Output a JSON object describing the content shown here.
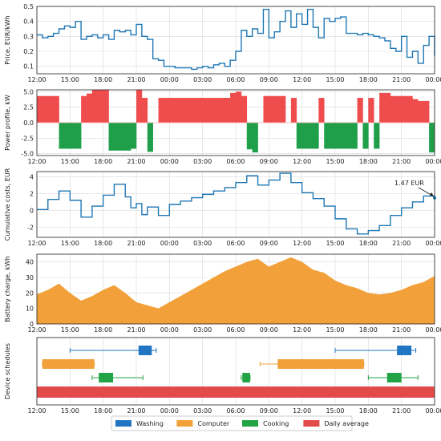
{
  "x_tick_labels": [
    "12:00",
    "15:00",
    "18:00",
    "21:00",
    "00:00",
    "03:00",
    "06:00",
    "09:00",
    "12:00",
    "15:00",
    "18:00",
    "21:00",
    "00:00"
  ],
  "colors": {
    "line": "#1f77b4",
    "pos": "#ef4d4d",
    "neg": "#1f9f4a",
    "battery": "#f2a03a",
    "washing": "#2176c4",
    "computer": "#f2a03a",
    "cooking": "#22a345",
    "daily": "#e34a4a",
    "grid": "#d9d9d9"
  },
  "chart_data": [
    {
      "type": "line",
      "ylabel": "Price, EUR/kWh",
      "ylim": [
        0.05,
        0.5
      ],
      "yticks": [
        0.1,
        0.2,
        0.3,
        0.4,
        0.5
      ],
      "ytick_labels": [
        "0.1",
        "0.2",
        "0.3",
        "0.4",
        "0.5"
      ],
      "x_hours": [
        12,
        12.5,
        13,
        13.5,
        14,
        14.5,
        15,
        15.5,
        16,
        16.5,
        17,
        17.5,
        18,
        18.5,
        19,
        19.5,
        20,
        20.5,
        21,
        21.5,
        22,
        22.5,
        23,
        23.5,
        24,
        24.5,
        25,
        25.5,
        26,
        26.5,
        27,
        27.5,
        28,
        28.5,
        29,
        29.5,
        30,
        30.5,
        31,
        31.5,
        32,
        32.5,
        33,
        33.5,
        34,
        34.5,
        35,
        35.5,
        36,
        36.5,
        37,
        37.5,
        38,
        38.5,
        39,
        39.5,
        40,
        40.5,
        41,
        41.5,
        42,
        42.5,
        43,
        43.5,
        44,
        44.5,
        45,
        45.5,
        46,
        46.5,
        47,
        47.5,
        48
      ],
      "values": [
        0.31,
        0.29,
        0.3,
        0.32,
        0.35,
        0.37,
        0.36,
        0.4,
        0.28,
        0.3,
        0.31,
        0.29,
        0.31,
        0.28,
        0.34,
        0.33,
        0.34,
        0.31,
        0.38,
        0.3,
        0.28,
        0.15,
        0.14,
        0.1,
        0.1,
        0.09,
        0.09,
        0.09,
        0.08,
        0.09,
        0.1,
        0.09,
        0.11,
        0.12,
        0.1,
        0.14,
        0.2,
        0.34,
        0.3,
        0.35,
        0.32,
        0.48,
        0.29,
        0.33,
        0.4,
        0.47,
        0.36,
        0.45,
        0.38,
        0.48,
        0.36,
        0.29,
        0.42,
        0.4,
        0.42,
        0.43,
        0.32,
        0.32,
        0.31,
        0.32,
        0.31,
        0.3,
        0.29,
        0.27,
        0.22,
        0.2,
        0.3,
        0.16,
        0.2,
        0.12,
        0.24,
        0.3,
        0.17
      ]
    },
    {
      "type": "bar",
      "ylabel": "Power profile, kW",
      "ylim": [
        -5.3,
        5.3
      ],
      "yticks": [
        -5.0,
        -2.5,
        0.0,
        2.5,
        5.0
      ],
      "ytick_labels": [
        "-5.0",
        "-2.5",
        "0.0",
        "2.5",
        "5.0"
      ],
      "x_hours": [
        12,
        12.5,
        13,
        13.5,
        14,
        14.5,
        15,
        15.5,
        16,
        16.5,
        17,
        17.5,
        18,
        18.5,
        19,
        19.5,
        20,
        20.5,
        21,
        21.5,
        22,
        22.5,
        23,
        23.5,
        24,
        24.5,
        25,
        25.5,
        26,
        26.5,
        27,
        27.5,
        28,
        28.5,
        29,
        29.5,
        30,
        30.5,
        31,
        31.5,
        32,
        32.5,
        33,
        33.5,
        34,
        34.5,
        35,
        35.5,
        36,
        36.5,
        37,
        37.5,
        38,
        38.5,
        39,
        39.5,
        40,
        40.5,
        41,
        41.5,
        42,
        42.5,
        43,
        43.5,
        44,
        44.5,
        45,
        45.5,
        46,
        46.5,
        47,
        47.5
      ],
      "values": [
        4.3,
        4.3,
        4.3,
        4.3,
        -4.2,
        -4.2,
        -4.2,
        -4.2,
        4.3,
        4.7,
        5.3,
        5.3,
        5.3,
        -4.5,
        -4.5,
        -4.5,
        -4.5,
        -4.2,
        5.3,
        4.0,
        -4.7,
        0,
        4.0,
        4.0,
        4.0,
        4.0,
        4.0,
        4.0,
        4.0,
        4.0,
        4.0,
        4.0,
        4.0,
        4.0,
        4.0,
        4.8,
        5.0,
        4.3,
        -4.3,
        -4.8,
        0,
        4.3,
        4.3,
        4.3,
        4.3,
        0,
        4.0,
        -4.2,
        -4.2,
        -4.2,
        -4.2,
        4.0,
        -4.2,
        -4.2,
        -4.2,
        -4.2,
        -4.2,
        -4.2,
        4.0,
        -4.2,
        4.0,
        -4.2,
        4.8,
        4.8,
        4.3,
        4.3,
        4.3,
        4.3,
        3.8,
        3.5,
        3.5,
        -4.8
      ]
    },
    {
      "type": "line",
      "ylabel": "Cumulative costs, EUR",
      "ylim": [
        -3.2,
        4.6
      ],
      "yticks": [
        -2,
        0,
        2,
        4
      ],
      "ytick_labels": [
        "-2",
        "0",
        "2",
        "4"
      ],
      "x_hours": [
        12,
        13,
        14,
        15,
        16,
        17,
        18,
        19,
        20,
        20.5,
        21,
        21.5,
        22,
        23,
        24,
        25,
        26,
        27,
        28,
        29,
        30,
        31,
        32,
        33,
        34,
        35,
        36,
        37,
        38,
        39,
        40,
        41,
        42,
        43,
        44,
        45,
        46,
        47,
        48
      ],
      "values": [
        0.1,
        1.3,
        2.3,
        1.2,
        -0.8,
        0.5,
        1.8,
        3.1,
        1.6,
        0.3,
        0.8,
        -0.5,
        0.4,
        -0.6,
        0.7,
        1.1,
        1.5,
        1.9,
        2.3,
        2.7,
        3.3,
        4.1,
        3.0,
        3.6,
        4.4,
        3.3,
        2.1,
        1.4,
        0.5,
        -1.0,
        -2.2,
        -2.8,
        -2.4,
        -1.8,
        -0.6,
        0.3,
        1.0,
        1.7,
        1.47
      ],
      "annotation": "1.47 EUR"
    },
    {
      "type": "area",
      "ylabel": "Battery charge, kWh",
      "ylim": [
        0,
        45
      ],
      "yticks": [
        0,
        10,
        20,
        30,
        40
      ],
      "ytick_labels": [
        "0",
        "10",
        "20",
        "30",
        "40"
      ],
      "x_hours": [
        12,
        13,
        14,
        15,
        16,
        17,
        18,
        19,
        20,
        21,
        22,
        23,
        24,
        25,
        26,
        27,
        28,
        29,
        30,
        31,
        32,
        33,
        34,
        35,
        36,
        37,
        38,
        39,
        40,
        41,
        42,
        43,
        44,
        45,
        46,
        47,
        48
      ],
      "values": [
        19,
        22,
        26,
        20,
        15,
        18,
        22,
        25,
        20,
        14,
        12,
        10,
        14,
        18,
        22,
        26,
        30,
        34,
        37,
        40,
        42,
        37,
        40,
        43,
        40,
        35,
        33,
        28,
        25,
        23,
        20,
        19,
        20,
        22,
        25,
        27,
        31
      ]
    },
    {
      "type": "gantt",
      "ylabel": "Device schedules",
      "legend": [
        "Washing",
        "Computer",
        "Cooking",
        "Daily average"
      ],
      "rows": [
        {
          "series": "Washing",
          "window": [
            15.0,
            22.8
          ],
          "block": [
            21.2,
            22.4
          ]
        },
        {
          "series": "Washing",
          "window": [
            39.0,
            46.3
          ],
          "block": [
            44.6,
            45.9
          ]
        },
        {
          "series": "Computer",
          "window": [
            12.5,
            17.2
          ],
          "block": [
            12.5,
            17.2
          ]
        },
        {
          "series": "Computer",
          "window": [
            32.2,
            41.6
          ],
          "block": [
            33.8,
            41.6
          ]
        },
        {
          "series": "Cooking",
          "window": [
            17.0,
            21.6
          ],
          "block": [
            17.6,
            18.9
          ]
        },
        {
          "series": "Cooking",
          "window": [
            30.5,
            31.3
          ],
          "block": [
            30.6,
            31.3
          ]
        },
        {
          "series": "Cooking",
          "window": [
            42.0,
            46.5
          ],
          "block": [
            43.7,
            45.0
          ]
        },
        {
          "series": "Daily average",
          "window": [
            12.0,
            48.0
          ],
          "block": [
            12.0,
            48.0
          ]
        }
      ]
    }
  ]
}
